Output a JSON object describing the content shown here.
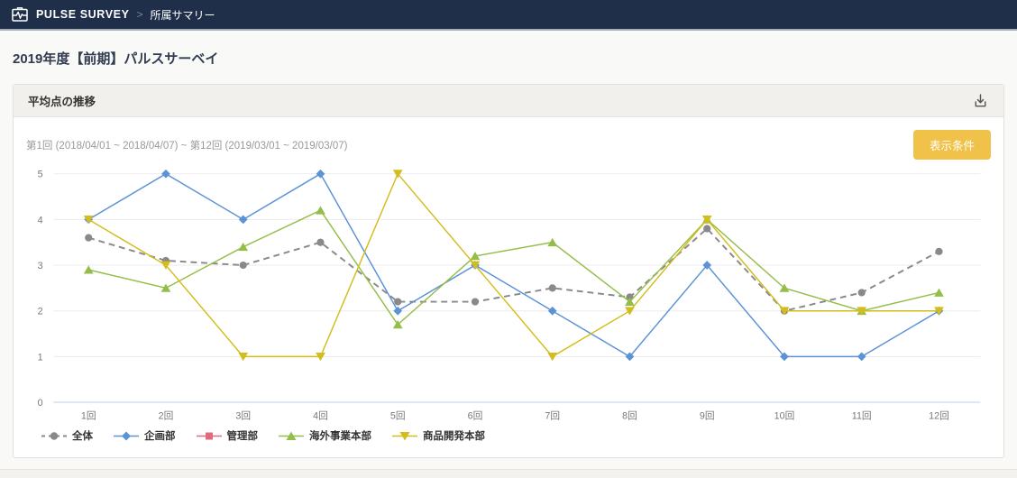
{
  "navbar": {
    "brand": "PULSE SURVEY",
    "separator": ">",
    "breadcrumb": "所属サマリー"
  },
  "page": {
    "title": "2019年度【前期】パルスサーベイ"
  },
  "panel": {
    "title": "平均点の推移",
    "download_icon": "download-icon",
    "date_range": "第1回 (2018/04/01 ~ 2018/04/07) ~ 第12回 (2019/03/01 ~ 2019/03/07)",
    "filter_button_label": "表示条件"
  },
  "colors": {
    "navbar_bg": "#1f2e49",
    "filter_button_bg": "#f0c24a",
    "grid_line": "#ebebeb",
    "axis_baseline": "#c9d9ea",
    "axis_text": "#777777"
  },
  "chart_data": {
    "type": "line",
    "title": "平均点の推移",
    "xlabel": "",
    "ylabel": "",
    "ylim": [
      0,
      5
    ],
    "yticks": [
      0,
      1,
      2,
      3,
      4,
      5
    ],
    "grid": "horizontal",
    "legend_position": "bottom-left",
    "categories": [
      "1回",
      "2回",
      "3回",
      "4回",
      "5回",
      "6回",
      "7回",
      "8回",
      "9回",
      "10回",
      "11回",
      "12回"
    ],
    "series": [
      {
        "name": "全体",
        "color": "#898989",
        "marker": "circle",
        "dashed": true,
        "values": [
          3.6,
          3.1,
          3.0,
          3.5,
          2.2,
          2.2,
          2.5,
          2.3,
          3.8,
          2.0,
          2.4,
          3.3
        ]
      },
      {
        "name": "企画部",
        "color": "#5b93d6",
        "marker": "diamond",
        "dashed": false,
        "values": [
          4.0,
          5.0,
          4.0,
          5.0,
          2.0,
          3.0,
          2.0,
          1.0,
          3.0,
          1.0,
          1.0,
          2.0
        ]
      },
      {
        "name": "管理部",
        "color": "#e0697a",
        "marker": "square",
        "dashed": false,
        "values": [
          null,
          null,
          null,
          null,
          null,
          null,
          null,
          null,
          null,
          null,
          null,
          null
        ]
      },
      {
        "name": "海外事業本部",
        "color": "#94be4a",
        "marker": "triangle-up",
        "dashed": false,
        "values": [
          2.9,
          2.5,
          3.4,
          4.2,
          1.7,
          3.2,
          3.5,
          2.2,
          4.0,
          2.5,
          2.0,
          2.4
        ]
      },
      {
        "name": "商品開発本部",
        "color": "#d3bd1c",
        "marker": "triangle-down",
        "dashed": false,
        "values": [
          4.0,
          3.0,
          1.0,
          1.0,
          5.0,
          3.0,
          1.0,
          2.0,
          4.0,
          2.0,
          2.0,
          2.0
        ]
      }
    ]
  }
}
